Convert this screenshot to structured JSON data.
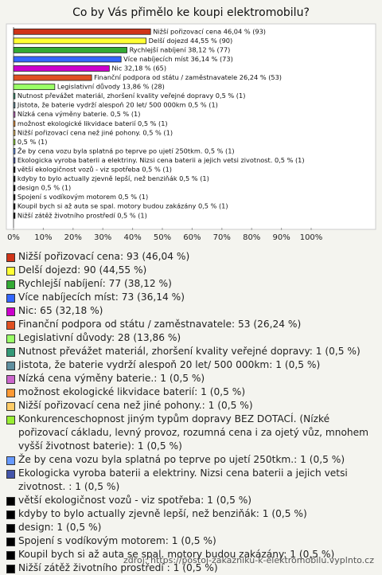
{
  "chart_data": {
    "type": "bar",
    "orientation": "horizontal",
    "title": "Co by Vás přimělo ke koupi elektromobilu?",
    "categories": [
      "Nižší pořizovací cena 46,04 % (93)",
      "Delší dojezd 44,55 % (90)",
      "Rychlejší nabíjení 38,12 % (77)",
      "Více nabíjecích míst 36,14 % (73)",
      "Nic 32,18 % (65)",
      "Finanční podpora od státu / zaměstnavatele 26,24 % (53)",
      "Legislativní důvody 13,86 % (28)",
      "Nutnost převážet materiál, zhoršení kvality veřejné dopravy 0,5 % (1)",
      "Jistota, že baterie  vydrží alespoň 20 let/ 500 000km 0,5 % (1)",
      "Nízká cena výměny baterie. 0,5 % (1)",
      "možnost ekologické likvidace baterií 0,5 % (1)",
      "Nižší pořizovací cena než jiné pohony. 0,5 % (1)",
      "0,5 % (1)",
      "Že by cena vozu byla splatná po teprve po ujetí 250tkm. 0,5 % (1)",
      "Ekologicka vyroba baterii a elektriny. Nizsi cena baterii a jejich vetsi zivotnost.  0,5 % (1)",
      "větší ekologičnost vozů - viz spotřeba 0,5 % (1)",
      "kdyby to bylo actually zjevně lepší, než benziňák 0,5 % (1)",
      "design 0,5 % (1)",
      "Spojení s vodíkovým motorem 0,5 % (1)",
      "Koupil bych si až auta se spal. motory budou zakázány 0,5 % (1)",
      "Nižší zátěž životního prostředí 0,5 % (1)"
    ],
    "values": [
      46.04,
      44.55,
      38.12,
      36.14,
      32.18,
      26.24,
      13.86,
      0.5,
      0.5,
      0.5,
      0.5,
      0.5,
      0.5,
      0.5,
      0.5,
      0.5,
      0.5,
      0.5,
      0.5,
      0.5,
      0.5
    ],
    "colors": [
      "#d03418",
      "#ffff33",
      "#33aa33",
      "#3366ff",
      "#cc00cc",
      "#e05020",
      "#99ff66",
      "#339977",
      "#5f8f9f",
      "#cc66cc",
      "#ff9933",
      "#ffcc66",
      "#99ee33",
      "#6699ff",
      "#4455aa",
      "#000000",
      "#000000",
      "#000000",
      "#000000",
      "#000000",
      "#000000"
    ],
    "legend": [
      "Nižší pořizovací cena: 93 (46,04 %)",
      "Delší dojezd: 90 (44,55 %)",
      "Rychlejší nabíjení: 77 (38,12 %)",
      "Více nabíjecích míst: 73 (36,14 %)",
      "Nic: 65 (32,18 %)",
      "Finanční podpora od státu / zaměstnavatele: 53 (26,24 %)",
      "Legislativní důvody: 28 (13,86 %)",
      "Nutnost převážet materiál, zhoršení kvality veřejné dopravy: 1 (0,5 %)",
      "Jistota, že baterie  vydrží alespoň 20 let/ 500 000km: 1 (0,5 %)",
      "Nízká cena výměny baterie.: 1 (0,5 %)",
      "možnost ekologické likvidace baterií: 1 (0,5 %)",
      "Nižší pořizovací cena než jiné pohony.: 1 (0,5 %)",
      "Konkurenceschopnost jiným typům dopravy BEZ DOTACÍ. (Nízké pořizovací cákladu, levný provoz, rozumná cena i za ojetý vůz, mnohem vyšší životnost baterie): 1 (0,5 %)",
      "Že by cena vozu byla splatná po teprve po ujetí 250tkm.: 1 (0,5 %)",
      "Ekologicka vyroba baterii a elektriny. Nizsi cena baterii a jejich vetsi zivotnost. : 1 (0,5 %)",
      "větší ekologičnost vozů - viz spotřeba: 1 (0,5 %)",
      "kdyby to bylo actually zjevně lepší, než benziňák: 1 (0,5 %)",
      "design: 1 (0,5 %)",
      "Spojení s vodíkovým motorem: 1 (0,5 %)",
      "Koupil bych si až auta se spal. motory budou zakázány: 1 (0,5 %)",
      "Nižší zátěž životního prostředí : 1 (0,5 %)"
    ],
    "xlim": [
      0,
      100
    ],
    "xticks": [
      {
        "value": 0,
        "label": "0%"
      },
      {
        "value": 10,
        "label": "10%"
      },
      {
        "value": 20,
        "label": "20%"
      },
      {
        "value": 30,
        "label": "30%"
      },
      {
        "value": 40,
        "label": "40%"
      },
      {
        "value": 50,
        "label": "50%"
      },
      {
        "value": 60,
        "label": "60%"
      },
      {
        "value": 70,
        "label": "70%"
      },
      {
        "value": 80,
        "label": "80%"
      },
      {
        "value": 90,
        "label": "90%"
      },
      {
        "value": 100,
        "label": "100%"
      }
    ],
    "source": "zdroj: https://postoj-zakazniku-k-elektromobilu.vyplnto.cz"
  }
}
